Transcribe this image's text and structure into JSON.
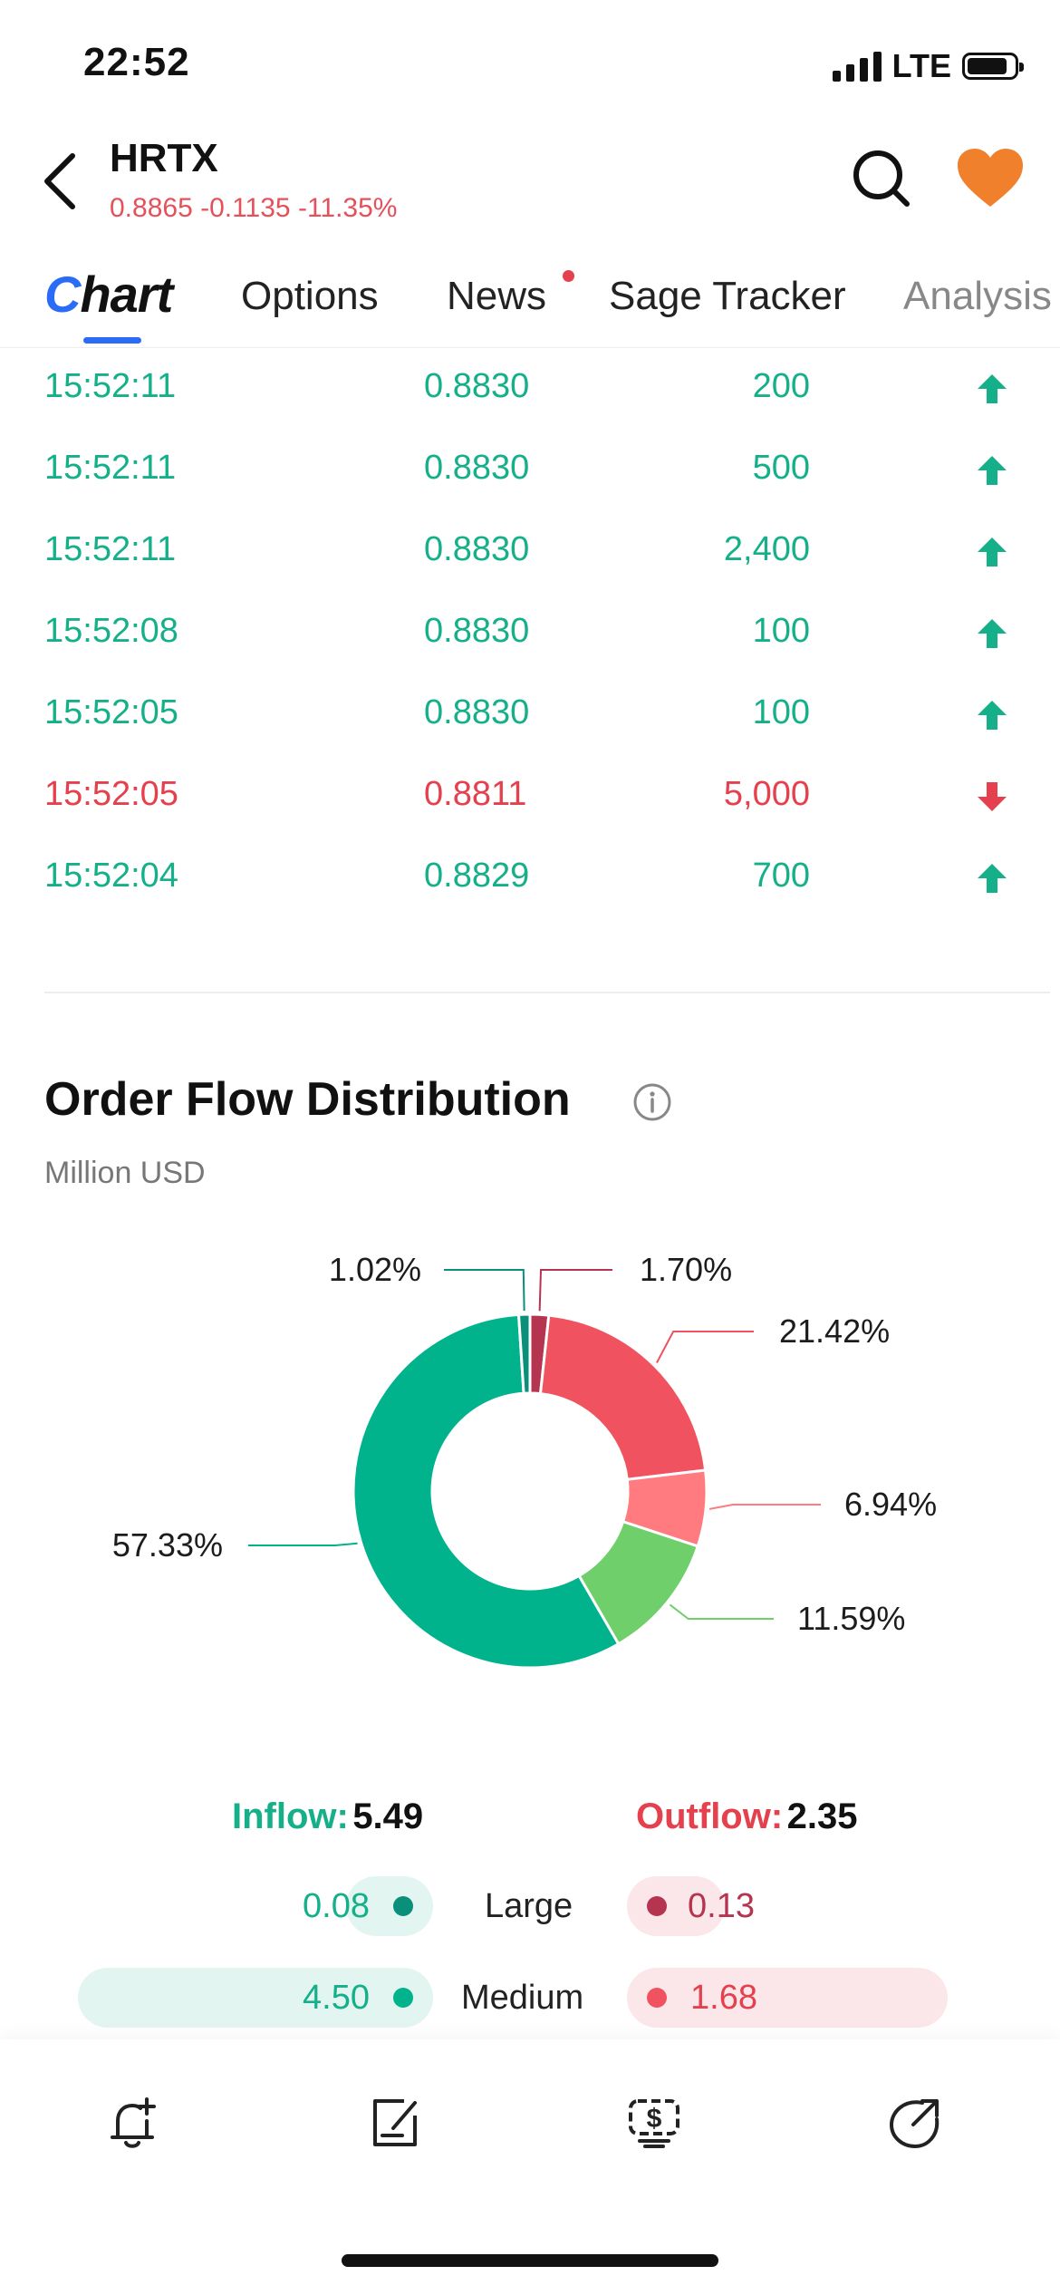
{
  "status_bar": {
    "time": "22:52",
    "network": "LTE"
  },
  "header": {
    "ticker": "HRTX",
    "quote": "0.8865 -0.1135 -11.35%"
  },
  "tabs": [
    {
      "label": "hart",
      "prefix": "C"
    },
    {
      "label": "Options"
    },
    {
      "label": "News"
    },
    {
      "label": "Sage Tracker"
    },
    {
      "label": "Analysis"
    }
  ],
  "trades": [
    {
      "time": "15:52:11",
      "price": "0.8830",
      "volume": "200",
      "dir": "up"
    },
    {
      "time": "15:52:11",
      "price": "0.8830",
      "volume": "500",
      "dir": "up"
    },
    {
      "time": "15:52:11",
      "price": "0.8830",
      "volume": "2,400",
      "dir": "up"
    },
    {
      "time": "15:52:08",
      "price": "0.8830",
      "volume": "100",
      "dir": "up"
    },
    {
      "time": "15:52:05",
      "price": "0.8830",
      "volume": "100",
      "dir": "up"
    },
    {
      "time": "15:52:05",
      "price": "0.8811",
      "volume": "5,000",
      "dir": "down"
    },
    {
      "time": "15:52:04",
      "price": "0.8829",
      "volume": "700",
      "dir": "up"
    }
  ],
  "order_flow": {
    "title": "Order Flow Distribution",
    "unit": "Million USD",
    "inflow_label": "Inflow:",
    "inflow_value": "5.49",
    "outflow_label": "Outflow:",
    "outflow_value": "2.35",
    "rows": [
      {
        "label": "Large",
        "in_value": "0.08",
        "out_value": "0.13"
      },
      {
        "label": "Medium",
        "in_value": "4.50",
        "out_value": "1.68"
      }
    ]
  },
  "chart_data": {
    "type": "pie",
    "title": "",
    "slices": [
      {
        "label": "1.70%",
        "value": 1.7,
        "color": "#b5344f"
      },
      {
        "label": "21.42%",
        "value": 21.42,
        "color": "#f0525f"
      },
      {
        "label": "6.94%",
        "value": 6.94,
        "color": "#ff7b80"
      },
      {
        "label": "11.59%",
        "value": 11.59,
        "color": "#6fcf6b"
      },
      {
        "label": "57.33%",
        "value": 57.33,
        "color": "#00b38c"
      },
      {
        "label": "1.02%",
        "value": 1.02,
        "color": "#0a8f7a"
      }
    ]
  },
  "colors": {
    "up": "#15b08a",
    "down": "#e5404d",
    "accent": "#2b6cf6",
    "heart": "#f0802b"
  },
  "bottom_bar_icons": [
    "bell-plus-icon",
    "edit-note-icon",
    "dollar-screen-icon",
    "share-arrow-icon"
  ]
}
